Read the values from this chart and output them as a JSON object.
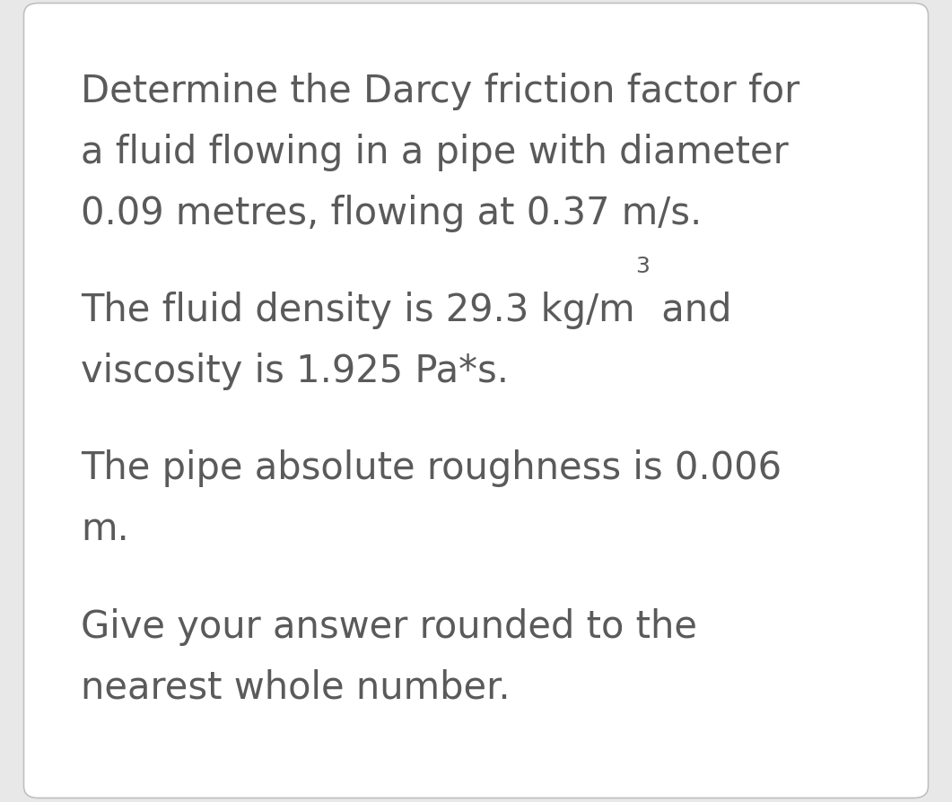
{
  "background_color": "#e8e8e8",
  "card_color": "#ffffff",
  "card_border_color": "#c0c0c0",
  "text_color": "#5a5a5a",
  "font_size": 30,
  "paragraphs": [
    {
      "lines": [
        {
          "text": "Determine the Darcy friction factor for",
          "sup": null
        },
        {
          "text": "a fluid flowing in a pipe with diameter",
          "sup": null
        },
        {
          "text": "0.09 metres, flowing at 0.37 m/s.",
          "sup": null
        }
      ]
    },
    {
      "lines": [
        {
          "text": "The fluid density is 29.3 kg/m",
          "sup": "3",
          "after": " and"
        },
        {
          "text": "viscosity is 1.925 Pa*s.",
          "sup": null
        }
      ]
    },
    {
      "lines": [
        {
          "text": "The pipe absolute roughness is 0.006",
          "sup": null
        },
        {
          "text": "m.",
          "sup": null
        }
      ]
    },
    {
      "lines": [
        {
          "text": "Give your answer rounded to the",
          "sup": null
        },
        {
          "text": "nearest whole number.",
          "sup": null
        }
      ]
    }
  ]
}
